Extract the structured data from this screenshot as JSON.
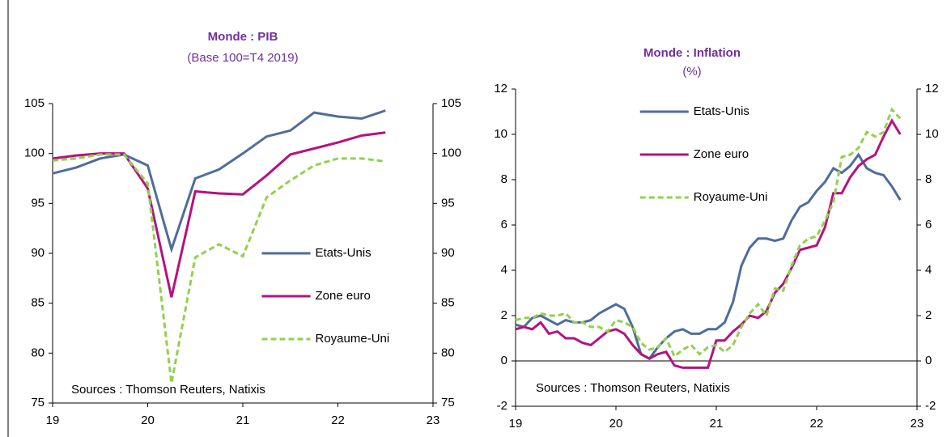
{
  "chart_data": [
    {
      "type": "line",
      "title": "Monde : PIB",
      "subtitle": "(Base 100=T4 2019)",
      "x": [
        19,
        19.25,
        19.5,
        19.75,
        20,
        20.25,
        20.5,
        20.75,
        21,
        21.25,
        21.5,
        21.75,
        22,
        22.25,
        22.5
      ],
      "series": [
        {
          "name": "Etats-Unis",
          "color": "#4e6d9b",
          "dash": false,
          "values": [
            98.0,
            98.6,
            99.5,
            99.9,
            98.8,
            90.4,
            97.5,
            98.4,
            100.0,
            101.7,
            102.3,
            104.1,
            103.7,
            103.5,
            104.3
          ]
        },
        {
          "name": "Zone euro",
          "color": "#b5127f",
          "dash": false,
          "values": [
            99.5,
            99.8,
            100.0,
            100.0,
            96.5,
            85.6,
            96.2,
            96.0,
            95.9,
            97.8,
            99.9,
            100.5,
            101.1,
            101.8,
            102.1
          ]
        },
        {
          "name": "Royaume-Uni",
          "color": "#92d050",
          "dash": true,
          "values": [
            99.3,
            99.5,
            99.9,
            99.9,
            97.0,
            77.0,
            89.6,
            90.9,
            89.7,
            95.6,
            97.3,
            98.8,
            99.5,
            99.5,
            99.2
          ]
        }
      ],
      "xlim": [
        19,
        23
      ],
      "xticks": [
        19,
        20,
        21,
        22,
        23
      ],
      "ylim": [
        75,
        105
      ],
      "yticks": [
        75,
        80,
        85,
        90,
        95,
        100,
        105
      ],
      "y2lim": [
        75,
        105
      ],
      "y2ticks": [
        75,
        80,
        85,
        90,
        95,
        100,
        105
      ],
      "legend": "center right",
      "annotation": "Sources : Thomson Reuters, Natixis"
    },
    {
      "type": "line",
      "title": "Monde : Inflation",
      "subtitle": "(%)",
      "x": [
        19,
        19.0833,
        19.1667,
        19.25,
        19.3333,
        19.4167,
        19.5,
        19.5833,
        19.6667,
        19.75,
        19.8333,
        19.9167,
        20,
        20.0833,
        20.1667,
        20.25,
        20.3333,
        20.4167,
        20.5,
        20.5833,
        20.6667,
        20.75,
        20.8333,
        20.9167,
        21,
        21.0833,
        21.1667,
        21.25,
        21.3333,
        21.4167,
        21.5,
        21.5833,
        21.6667,
        21.75,
        21.8333,
        21.9167,
        22,
        22.0833,
        22.1667,
        22.25,
        22.3333,
        22.4167,
        22.5,
        22.5833,
        22.6667,
        22.75,
        22.8333
      ],
      "series": [
        {
          "name": "Etats-Unis",
          "color": "#4e6d9b",
          "dash": false,
          "values": [
            1.6,
            1.5,
            1.9,
            2.0,
            1.8,
            1.6,
            1.8,
            1.7,
            1.7,
            1.8,
            2.1,
            2.3,
            2.5,
            2.3,
            1.5,
            0.3,
            0.1,
            0.6,
            1.0,
            1.3,
            1.4,
            1.2,
            1.2,
            1.4,
            1.4,
            1.7,
            2.6,
            4.2,
            5.0,
            5.4,
            5.4,
            5.3,
            5.4,
            6.2,
            6.8,
            7.0,
            7.5,
            7.9,
            8.5,
            8.3,
            8.6,
            9.1,
            8.5,
            8.3,
            8.2,
            7.7,
            7.1
          ]
        },
        {
          "name": "Zone euro",
          "color": "#b5127f",
          "dash": false,
          "values": [
            1.4,
            1.5,
            1.4,
            1.7,
            1.2,
            1.3,
            1.0,
            1.0,
            0.8,
            0.7,
            1.0,
            1.3,
            1.4,
            1.2,
            0.7,
            0.3,
            0.1,
            0.3,
            0.4,
            -0.2,
            -0.3,
            -0.3,
            -0.3,
            -0.3,
            0.9,
            0.9,
            1.3,
            1.6,
            2.0,
            1.9,
            2.2,
            3.0,
            3.4,
            4.1,
            4.9,
            5.0,
            5.1,
            5.9,
            7.4,
            7.4,
            8.1,
            8.6,
            8.9,
            9.1,
            9.9,
            10.6,
            10.0
          ]
        },
        {
          "name": "Royaume-Uni",
          "color": "#92d050",
          "dash": true,
          "values": [
            1.8,
            1.9,
            1.9,
            2.1,
            2.0,
            2.0,
            2.1,
            1.7,
            1.7,
            1.5,
            1.5,
            1.3,
            1.8,
            1.7,
            1.5,
            0.8,
            0.5,
            0.6,
            1.0,
            0.2,
            0.5,
            0.7,
            0.3,
            0.6,
            0.7,
            0.4,
            0.7,
            1.5,
            2.1,
            2.5,
            2.0,
            3.2,
            3.1,
            4.2,
            5.1,
            5.4,
            5.5,
            6.2,
            7.0,
            9.0,
            9.1,
            9.4,
            10.1,
            9.9,
            10.1,
            11.1,
            10.7
          ]
        }
      ],
      "xlim": [
        19,
        23
      ],
      "xticks": [
        19,
        20,
        21,
        22,
        23
      ],
      "ylim": [
        -2,
        12
      ],
      "yticks": [
        -2,
        0,
        2,
        4,
        6,
        8,
        10,
        12
      ],
      "y2lim": [
        -2,
        12
      ],
      "y2ticks": [
        -2,
        0,
        2,
        4,
        6,
        8,
        10,
        12
      ],
      "legend": "upper left",
      "annotation": "Sources : Thomson Reuters, Natixis"
    }
  ]
}
